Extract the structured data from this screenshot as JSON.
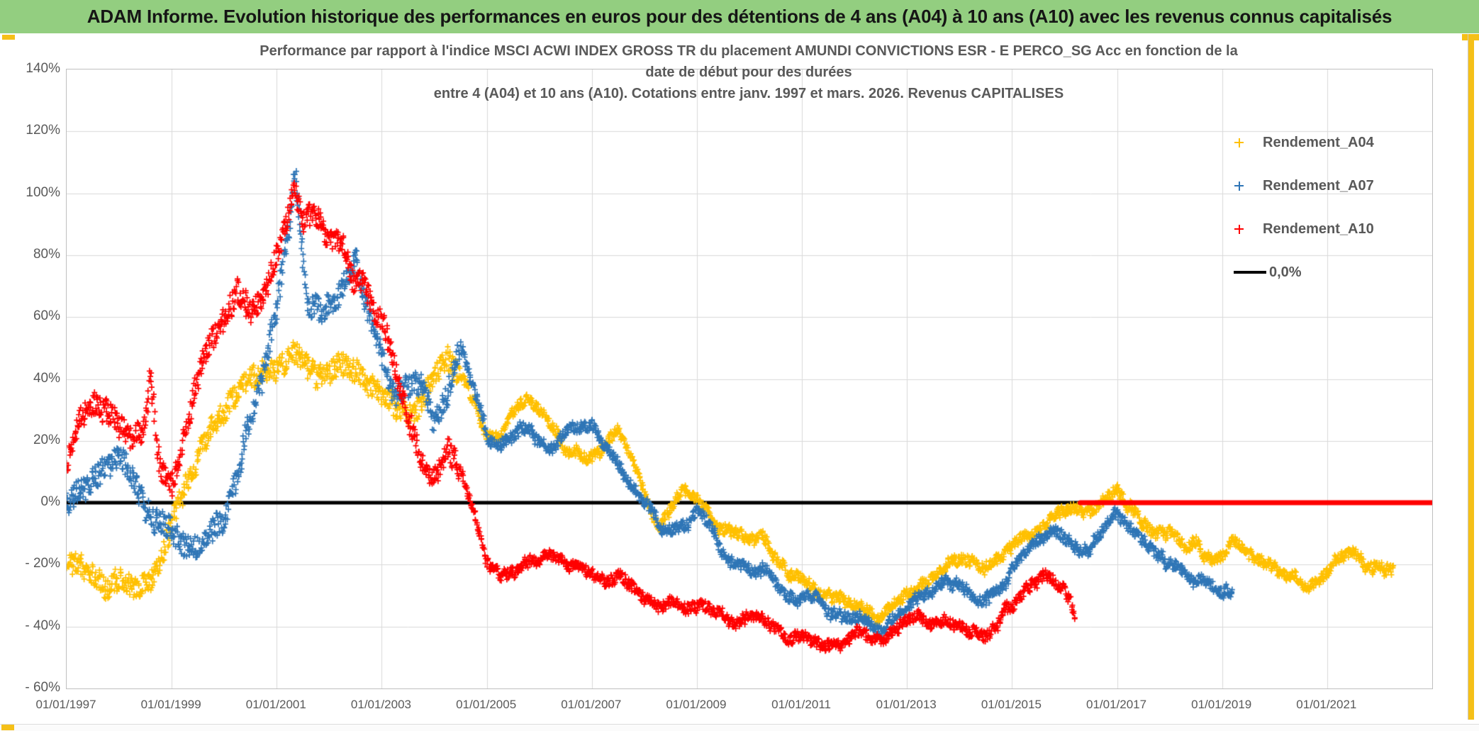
{
  "page": {
    "header_title": "ADAM Informe. Evolution historique des performances en euros pour des détentions de 4 ans (A04) à 10 ans (A10) avec les revenus connus capitalisés"
  },
  "colors": {
    "header_bg": "#93CE80",
    "gold_accent": "#F5C018",
    "text_gray": "#595959",
    "grid": "#D9D9D9",
    "plot_border": "#BFBFBF",
    "zero_line": "#000000"
  },
  "chart_data": {
    "type": "scatter",
    "title_lines": [
      "Performance par rapport à l'indice MSCI ACWI INDEX GROSS TR  du placement AMUNDI CONVICTIONS ESR - E PERCO_SG Acc en fonction de la",
      "date de début pour des durées",
      "entre 4 (A04) et 10 ans (A10). Cotations entre janv. 1997 et mars. 2026. Revenus CAPITALISES"
    ],
    "unit": "percent",
    "y_axis": {
      "min": -60,
      "max": 140,
      "tick_step": 20,
      "tick_values": [
        140,
        120,
        100,
        80,
        60,
        40,
        20,
        0,
        -20,
        -40,
        -60
      ],
      "tick_labels": [
        "140%",
        "120%",
        "100%",
        "80%",
        "60%",
        "40%",
        "20%",
        "0%",
        "- 20%",
        "- 40%",
        "- 60%"
      ]
    },
    "x_axis": {
      "start_year": 1997,
      "end_year": 2023,
      "tick_years": [
        1997,
        1999,
        2001,
        2003,
        2005,
        2007,
        2009,
        2011,
        2013,
        2015,
        2017,
        2019,
        2021
      ],
      "tick_labels": [
        "01/01/1997",
        "01/01/1999",
        "01/01/2001",
        "01/01/2003",
        "01/01/2005",
        "01/01/2007",
        "01/01/2009",
        "01/01/2011",
        "01/01/2013",
        "01/01/2015",
        "01/01/2017",
        "01/01/2019",
        "01/01/2021"
      ]
    },
    "zero_line": {
      "label": "0,0%",
      "value": 0,
      "color": "#000000"
    },
    "legend_position": "right-inside",
    "series": [
      {
        "name": "Rendement_A04",
        "color": "#FFC000",
        "marker": "plus",
        "anchors": [
          [
            1997.0,
            -19
          ],
          [
            1997.25,
            -23
          ],
          [
            1997.5,
            -26
          ],
          [
            1997.75,
            -29
          ],
          [
            1998.0,
            -27
          ],
          [
            1998.25,
            -31
          ],
          [
            1998.5,
            -29
          ],
          [
            1998.75,
            -24
          ],
          [
            1998.9,
            -16
          ],
          [
            1999.0,
            -10
          ],
          [
            1999.25,
            2
          ],
          [
            1999.5,
            13
          ],
          [
            1999.75,
            21
          ],
          [
            2000.0,
            27
          ],
          [
            2000.25,
            36
          ],
          [
            2000.5,
            42
          ],
          [
            2000.75,
            45
          ],
          [
            2001.0,
            46
          ],
          [
            2001.25,
            50
          ],
          [
            2001.5,
            47
          ],
          [
            2001.75,
            43
          ],
          [
            2002.0,
            45
          ],
          [
            2002.25,
            48
          ],
          [
            2002.5,
            46
          ],
          [
            2002.75,
            41
          ],
          [
            2003.0,
            36
          ],
          [
            2003.25,
            29
          ],
          [
            2003.5,
            24
          ],
          [
            2003.75,
            29
          ],
          [
            2004.0,
            39
          ],
          [
            2004.25,
            48
          ],
          [
            2004.5,
            43
          ],
          [
            2004.75,
            33
          ],
          [
            2005.0,
            23
          ],
          [
            2005.25,
            21
          ],
          [
            2005.5,
            27
          ],
          [
            2005.75,
            31
          ],
          [
            2006.0,
            27
          ],
          [
            2006.25,
            21
          ],
          [
            2006.5,
            17
          ],
          [
            2006.75,
            17
          ],
          [
            2007.0,
            15
          ],
          [
            2007.25,
            18
          ],
          [
            2007.5,
            23
          ],
          [
            2007.75,
            12
          ],
          [
            2008.0,
            0
          ],
          [
            2008.25,
            -9
          ],
          [
            2008.5,
            -4
          ],
          [
            2008.75,
            1
          ],
          [
            2009.0,
            -2
          ],
          [
            2009.25,
            -7
          ],
          [
            2009.5,
            -11
          ],
          [
            2009.75,
            -13
          ],
          [
            2010.0,
            -14
          ],
          [
            2010.25,
            -12
          ],
          [
            2010.5,
            -19
          ],
          [
            2010.75,
            -26
          ],
          [
            2011.0,
            -27
          ],
          [
            2011.25,
            -29
          ],
          [
            2011.5,
            -32
          ],
          [
            2011.75,
            -34
          ],
          [
            2012.0,
            -36
          ],
          [
            2012.25,
            -37
          ],
          [
            2012.5,
            -39
          ],
          [
            2012.75,
            -36
          ],
          [
            2013.0,
            -32
          ],
          [
            2013.25,
            -29
          ],
          [
            2013.5,
            -25
          ],
          [
            2013.75,
            -21
          ],
          [
            2014.0,
            -20
          ],
          [
            2014.25,
            -22
          ],
          [
            2014.5,
            -24
          ],
          [
            2014.75,
            -21
          ],
          [
            2015.0,
            -16
          ],
          [
            2015.25,
            -11
          ],
          [
            2015.5,
            -7
          ],
          [
            2015.75,
            -3
          ],
          [
            2016.0,
            -2
          ],
          [
            2016.25,
            -5
          ],
          [
            2016.5,
            -6
          ],
          [
            2016.75,
            -1
          ],
          [
            2016.95,
            3
          ],
          [
            2017.25,
            -4
          ],
          [
            2017.5,
            -7
          ],
          [
            2017.75,
            -10
          ],
          [
            2018.0,
            -12
          ],
          [
            2018.25,
            -14
          ],
          [
            2018.5,
            -12
          ],
          [
            2018.75,
            -16
          ],
          [
            2019.0,
            -14
          ],
          [
            2019.25,
            -9
          ],
          [
            2019.5,
            -13
          ],
          [
            2019.75,
            -16
          ],
          [
            2020.0,
            -18
          ],
          [
            2020.25,
            -21
          ],
          [
            2020.5,
            -23
          ],
          [
            2020.75,
            -26
          ],
          [
            2021.0,
            -24
          ],
          [
            2021.25,
            -20
          ],
          [
            2021.5,
            -19
          ],
          [
            2021.75,
            -21
          ],
          [
            2022.0,
            -20
          ],
          [
            2022.25,
            -19
          ]
        ]
      },
      {
        "name": "Rendement_A07",
        "color": "#2E75B6",
        "marker": "plus",
        "anchors": [
          [
            1997.0,
            1
          ],
          [
            1997.25,
            4
          ],
          [
            1997.5,
            8
          ],
          [
            1997.75,
            11
          ],
          [
            1998.0,
            12
          ],
          [
            1998.25,
            6
          ],
          [
            1998.5,
            -2
          ],
          [
            1998.75,
            -8
          ],
          [
            1999.0,
            -11
          ],
          [
            1999.25,
            -13
          ],
          [
            1999.5,
            -12
          ],
          [
            1999.75,
            -9
          ],
          [
            2000.0,
            -3
          ],
          [
            2000.25,
            12
          ],
          [
            2000.5,
            28
          ],
          [
            2000.75,
            40
          ],
          [
            2001.0,
            60
          ],
          [
            2001.25,
            90
          ],
          [
            2001.35,
            106
          ],
          [
            2001.5,
            78
          ],
          [
            2001.6,
            62
          ],
          [
            2001.75,
            60
          ],
          [
            2002.0,
            62
          ],
          [
            2002.25,
            68
          ],
          [
            2002.5,
            76
          ],
          [
            2002.75,
            58
          ],
          [
            2003.0,
            45
          ],
          [
            2003.25,
            35
          ],
          [
            2003.5,
            38
          ],
          [
            2003.75,
            40
          ],
          [
            2004.0,
            28
          ],
          [
            2004.25,
            35
          ],
          [
            2004.5,
            50
          ],
          [
            2004.75,
            38
          ],
          [
            2005.0,
            20
          ],
          [
            2005.25,
            16
          ],
          [
            2005.5,
            18
          ],
          [
            2005.75,
            24
          ],
          [
            2006.0,
            18
          ],
          [
            2006.25,
            14
          ],
          [
            2006.5,
            20
          ],
          [
            2006.75,
            26
          ],
          [
            2007.0,
            28
          ],
          [
            2007.25,
            20
          ],
          [
            2007.5,
            15
          ],
          [
            2007.75,
            8
          ],
          [
            2008.0,
            2
          ],
          [
            2008.25,
            -6
          ],
          [
            2008.5,
            -12
          ],
          [
            2008.75,
            -10
          ],
          [
            2009.0,
            -4
          ],
          [
            2009.25,
            -8
          ],
          [
            2009.5,
            -16
          ],
          [
            2009.75,
            -22
          ],
          [
            2010.0,
            -24
          ],
          [
            2010.25,
            -20
          ],
          [
            2010.5,
            -26
          ],
          [
            2010.75,
            -30
          ],
          [
            2011.0,
            -28
          ],
          [
            2011.25,
            -30
          ],
          [
            2011.5,
            -34
          ],
          [
            2011.75,
            -37
          ],
          [
            2012.0,
            -38
          ],
          [
            2012.25,
            -41
          ],
          [
            2012.5,
            -43
          ],
          [
            2012.75,
            -40
          ],
          [
            2013.0,
            -36
          ],
          [
            2013.25,
            -33
          ],
          [
            2013.5,
            -31
          ],
          [
            2013.75,
            -28
          ],
          [
            2014.0,
            -27
          ],
          [
            2014.25,
            -29
          ],
          [
            2014.5,
            -31
          ],
          [
            2014.75,
            -28
          ],
          [
            2015.0,
            -22
          ],
          [
            2015.25,
            -16
          ],
          [
            2015.5,
            -10
          ],
          [
            2015.75,
            -6
          ],
          [
            2016.0,
            -8
          ],
          [
            2016.25,
            -12
          ],
          [
            2016.5,
            -14
          ],
          [
            2016.75,
            -10
          ],
          [
            2017.0,
            -6
          ],
          [
            2017.25,
            -10
          ],
          [
            2017.5,
            -15
          ],
          [
            2017.75,
            -19
          ],
          [
            2018.0,
            -22
          ],
          [
            2018.25,
            -25
          ],
          [
            2018.5,
            -28
          ],
          [
            2018.75,
            -26
          ],
          [
            2019.0,
            -27
          ],
          [
            2019.2,
            -26
          ]
        ]
      },
      {
        "name": "Rendement_A10",
        "color": "#FF0000",
        "marker": "plus",
        "anchors": [
          [
            1997.0,
            13
          ],
          [
            1997.25,
            27
          ],
          [
            1997.5,
            33
          ],
          [
            1997.75,
            32
          ],
          [
            1998.0,
            27
          ],
          [
            1998.25,
            20
          ],
          [
            1998.5,
            22
          ],
          [
            1998.6,
            40
          ],
          [
            1998.7,
            18
          ],
          [
            1998.8,
            8
          ],
          [
            1999.0,
            2
          ],
          [
            1999.25,
            20
          ],
          [
            1999.5,
            38
          ],
          [
            1999.75,
            50
          ],
          [
            2000.0,
            60
          ],
          [
            2000.25,
            68
          ],
          [
            2000.5,
            60
          ],
          [
            2000.75,
            65
          ],
          [
            2001.0,
            80
          ],
          [
            2001.25,
            96
          ],
          [
            2001.35,
            103
          ],
          [
            2001.5,
            92
          ],
          [
            2001.75,
            96
          ],
          [
            2002.0,
            86
          ],
          [
            2002.25,
            88
          ],
          [
            2002.5,
            72
          ],
          [
            2002.65,
            76
          ],
          [
            2002.75,
            70
          ],
          [
            2003.0,
            60
          ],
          [
            2003.25,
            45
          ],
          [
            2003.5,
            25
          ],
          [
            2003.75,
            12
          ],
          [
            2004.0,
            7
          ],
          [
            2004.25,
            15
          ],
          [
            2004.5,
            10
          ],
          [
            2004.75,
            -5
          ],
          [
            2005.0,
            -18
          ],
          [
            2005.25,
            -23
          ],
          [
            2005.5,
            -20
          ],
          [
            2005.75,
            -19
          ],
          [
            2006.0,
            -21
          ],
          [
            2006.25,
            -19
          ],
          [
            2006.5,
            -22
          ],
          [
            2006.75,
            -24
          ],
          [
            2007.0,
            -25
          ],
          [
            2007.25,
            -28
          ],
          [
            2007.5,
            -26
          ],
          [
            2007.75,
            -30
          ],
          [
            2008.0,
            -33
          ],
          [
            2008.25,
            -36
          ],
          [
            2008.5,
            -34
          ],
          [
            2008.75,
            -36
          ],
          [
            2009.0,
            -35
          ],
          [
            2009.25,
            -33
          ],
          [
            2009.5,
            -36
          ],
          [
            2009.75,
            -38
          ],
          [
            2010.0,
            -37
          ],
          [
            2010.25,
            -36
          ],
          [
            2010.5,
            -39
          ],
          [
            2010.75,
            -41
          ],
          [
            2011.0,
            -40
          ],
          [
            2011.25,
            -42
          ],
          [
            2011.5,
            -44
          ],
          [
            2011.75,
            -45
          ],
          [
            2012.0,
            -44
          ],
          [
            2012.25,
            -46
          ],
          [
            2012.5,
            -47
          ],
          [
            2012.75,
            -44
          ],
          [
            2013.0,
            -41
          ],
          [
            2013.25,
            -39
          ],
          [
            2013.5,
            -38
          ],
          [
            2013.75,
            -36
          ],
          [
            2014.0,
            -37
          ],
          [
            2014.25,
            -39
          ],
          [
            2014.5,
            -40
          ],
          [
            2014.75,
            -37
          ],
          [
            2015.0,
            -32
          ],
          [
            2015.25,
            -27
          ],
          [
            2015.5,
            -24
          ],
          [
            2015.75,
            -22
          ],
          [
            2016.0,
            -26
          ],
          [
            2016.2,
            -33
          ]
        ],
        "flat_zero_segment": {
          "from": 2016.3,
          "to": 2023.0,
          "value": 0
        }
      }
    ]
  }
}
